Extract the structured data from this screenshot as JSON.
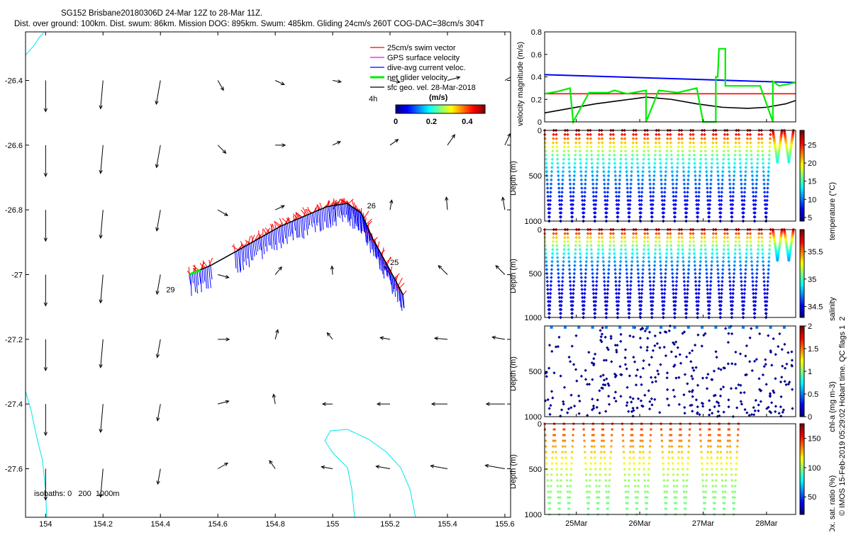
{
  "header": {
    "title_line1": "SG152 Brisbane20180306D 24-Mar 12Z to 28-Mar 11Z.",
    "title_line2": "Dist. over ground: 100km. Dist. swum: 86km. Mission DOG: 895km. Swum: 485km. Gliding 24cm/s 260T COG-DAC=38cm/s 304T"
  },
  "colors": {
    "swim": "#ff0000",
    "gps": "#ff00ff",
    "dac": "#0000ff",
    "net": "#00ee00",
    "geo": "#000000",
    "coast": "#00e5ee",
    "redline": "#ff0000"
  },
  "chart_data": [
    {
      "id": "map",
      "type": "scatter",
      "title": "",
      "x_ticks": [
        "154",
        "154.2",
        "154.4",
        "154.6",
        "154.8",
        "155",
        "155.2",
        "155.4",
        "155.6"
      ],
      "y_ticks": [
        "-26.4",
        "-26.6",
        "-26.8",
        "-27",
        "-27.2",
        "-27.4",
        "-27.6"
      ],
      "xlim": [
        153.93,
        155.62
      ],
      "ylim": [
        -27.75,
        -26.25
      ],
      "legend": [
        {
          "label": "25cm/s swim vector",
          "color_key": "swim"
        },
        {
          "label": "GPS surface velocity",
          "color_key": "gps"
        },
        {
          "label": "dive-avg current veloc.",
          "color_key": "dac"
        },
        {
          "label": "net glider velocity",
          "color_key": "net"
        },
        {
          "label": "sfc geo. vel. 28-Mar-2018",
          "color_key": "geo"
        }
      ],
      "legend_position": "top-right",
      "legend_extra": "4h",
      "colorbar": {
        "label": "(m/s)",
        "ticks": [
          "0",
          "0.2",
          "0.4"
        ],
        "range": [
          0,
          0.5
        ]
      },
      "isobaths_label": "isobaths: 0   200  1000m",
      "day_labels": [
        {
          "text": "26",
          "lon": 155.12,
          "lat": -26.795
        },
        {
          "text": "25",
          "lon": 155.2,
          "lat": -26.97
        },
        {
          "text": "29",
          "lon": 154.42,
          "lat": -27.055
        }
      ],
      "track": [
        [
          154.5,
          -27.0
        ],
        [
          154.58,
          -26.97
        ],
        [
          154.66,
          -26.93
        ],
        [
          154.74,
          -26.89
        ],
        [
          154.82,
          -26.85
        ],
        [
          154.9,
          -26.82
        ],
        [
          154.98,
          -26.79
        ],
        [
          155.05,
          -26.78
        ],
        [
          155.1,
          -26.81
        ],
        [
          155.14,
          -26.89
        ],
        [
          155.19,
          -26.97
        ],
        [
          155.25,
          -27.07
        ]
      ],
      "arrow_lons": [
        154.0,
        154.2,
        154.4,
        154.6,
        154.8,
        155.0,
        155.2,
        155.4,
        155.6
      ],
      "arrow_lats": [
        -26.4,
        -26.6,
        -26.8,
        -27.0,
        -27.2,
        -27.4,
        -27.6
      ]
    },
    {
      "id": "velocity",
      "type": "line",
      "ylabel": "velocity magnitude (m/s)",
      "y_ticks": [
        "0",
        "0.2",
        "0.4",
        "0.6",
        "0.8"
      ],
      "ylim": [
        0,
        0.8
      ],
      "xlim": [
        24.5,
        28.46
      ],
      "series": [
        {
          "name": "dive-avg current",
          "color_key": "dac",
          "x": [
            24.5,
            28.46
          ],
          "y": [
            0.42,
            0.35
          ]
        },
        {
          "name": "swim",
          "color_key": "redline",
          "x": [
            24.5,
            28.46
          ],
          "y": [
            0.25,
            0.25
          ]
        },
        {
          "name": "sfc geo",
          "color_key": "geo",
          "x": [
            24.5,
            24.9,
            25.3,
            25.7,
            26.1,
            26.5,
            26.9,
            27.3,
            27.7,
            28.0,
            28.3,
            28.46
          ],
          "y": [
            0.08,
            0.12,
            0.16,
            0.19,
            0.22,
            0.2,
            0.16,
            0.13,
            0.12,
            0.13,
            0.16,
            0.19
          ]
        },
        {
          "name": "net glider",
          "color_key": "net",
          "x": [
            24.5,
            24.7,
            24.9,
            24.95,
            25.2,
            25.5,
            25.6,
            25.8,
            26.1,
            26.1,
            26.3,
            26.6,
            26.9,
            27.0,
            27.2,
            27.2,
            27.23,
            27.25,
            27.35,
            27.35,
            27.9,
            28.1,
            28.1,
            28.2,
            28.46
          ],
          "y": [
            0.25,
            0.27,
            0.3,
            0.0,
            0.26,
            0.26,
            0.28,
            0.25,
            0.28,
            0.0,
            0.28,
            0.26,
            0.3,
            0.0,
            0.0,
            0.4,
            0.4,
            0.65,
            0.65,
            0.32,
            0.32,
            0.0,
            0.36,
            0.32,
            0.35
          ]
        }
      ]
    },
    {
      "id": "temperature",
      "type": "scatter",
      "ylabel": "Depth (m)",
      "cbar_label": "temperature (°C)",
      "cbar_ticks": [
        "5",
        "10",
        "15",
        "20",
        "25"
      ],
      "cbar_range": [
        4,
        29
      ],
      "y_ticks": [
        "0",
        "500",
        "1000"
      ],
      "ylim": [
        1000,
        0
      ],
      "profile_depth_max": 1000,
      "thermocline_depth": 500,
      "surface_value": 28,
      "deep_value": 4.5
    },
    {
      "id": "salinity",
      "type": "scatter",
      "ylabel": "Depth (m)",
      "cbar_label": "salinity",
      "cbar_ticks": [
        "34.5",
        "35",
        "35.5"
      ],
      "cbar_range": [
        34.3,
        35.9
      ],
      "y_ticks": [
        "0",
        "500",
        "1000"
      ],
      "ylim": [
        1000,
        0
      ],
      "profile_depth_max": 1000,
      "surface_value": 35.8,
      "deep_value": 34.4
    },
    {
      "id": "chla",
      "type": "scatter",
      "ylabel": "Depth (m)",
      "cbar_label": "chl-a (mg m-3)",
      "cbar_ticks": [
        "0",
        "0.5",
        "1",
        "1.5",
        "2"
      ],
      "cbar_range": [
        0,
        2
      ],
      "y_ticks": [
        "500",
        "1000"
      ],
      "ylim": [
        1000,
        0
      ],
      "profile_depth_max": 1000
    },
    {
      "id": "oxygen",
      "type": "scatter",
      "ylabel": "Depth (m)",
      "cbar_label": "Ox. sat. ratio (%)",
      "cbar_ticks": [
        "50",
        "100",
        "150"
      ],
      "cbar_range": [
        20,
        175
      ],
      "y_ticks": [
        "0",
        "500",
        "1000"
      ],
      "ylim": [
        1000,
        0
      ],
      "profile_depth_max": 1000,
      "x_ticks": [
        "25Mar",
        "26Mar",
        "27Mar",
        "28Mar"
      ],
      "x_tick_days": [
        25,
        26,
        27,
        28
      ]
    }
  ],
  "profiles": {
    "day_start": 24.5,
    "day_end": 28.46,
    "count": 22,
    "shallow_start_day": 28.1
  },
  "footer": {
    "credit": "© IMOS 15-Feb-2019 05:29:02 Hobart time. QC flags 1  2"
  }
}
